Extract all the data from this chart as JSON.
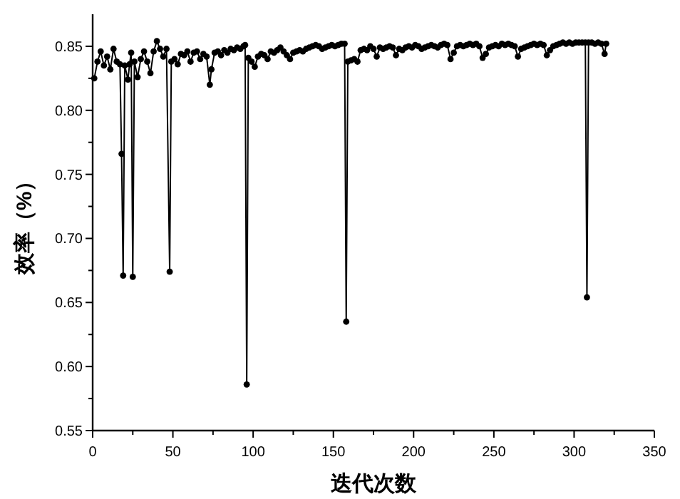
{
  "chart_data": {
    "type": "line",
    "xlabel": "迭代次数",
    "ylabel": "效率（%）",
    "marker": "circle",
    "line_style": "solid",
    "grid": false,
    "xlim": [
      0,
      350
    ],
    "ylim": [
      0.55,
      0.875
    ],
    "xticks": [
      0,
      {
        "value": 25,
        "label": null
      },
      50,
      {
        "value": 75,
        "label": null
      },
      100,
      {
        "value": 125,
        "label": null
      },
      150,
      {
        "value": 175,
        "label": null
      },
      200,
      {
        "value": 225,
        "label": null
      },
      250,
      {
        "value": 275,
        "label": null
      },
      300,
      {
        "value": 325,
        "label": null
      },
      350
    ],
    "yticks": [
      0.55,
      {
        "value": 0.575,
        "label": null
      },
      {
        "value": 0.6,
        "label": "0.60"
      },
      {
        "value": 0.625,
        "label": null
      },
      0.65,
      {
        "value": 0.675,
        "label": null
      },
      {
        "value": 0.7,
        "label": "0.70"
      },
      {
        "value": 0.725,
        "label": null
      },
      0.75,
      {
        "value": 0.775,
        "label": null
      },
      {
        "value": 0.8,
        "label": "0.80"
      },
      {
        "value": 0.825,
        "label": null
      },
      0.85
    ],
    "series": [
      {
        "color": "#000000",
        "x": [
          1,
          3,
          5,
          7,
          9,
          11,
          13,
          15,
          17,
          18,
          19,
          20,
          22,
          23,
          24,
          25,
          26,
          28,
          30,
          32,
          34,
          36,
          38,
          40,
          42,
          44,
          46,
          48,
          49,
          51,
          53,
          55,
          57,
          59,
          61,
          63,
          65,
          67,
          69,
          71,
          73,
          74,
          76,
          78,
          80,
          82,
          84,
          86,
          88,
          90,
          92,
          94,
          95,
          96,
          97,
          99,
          101,
          103,
          105,
          107,
          109,
          111,
          113,
          115,
          117,
          119,
          121,
          123,
          125,
          127,
          129,
          131,
          133,
          135,
          137,
          139,
          141,
          143,
          145,
          147,
          149,
          151,
          153,
          155,
          157,
          158,
          159,
          161,
          163,
          165,
          167,
          169,
          171,
          173,
          175,
          177,
          179,
          181,
          183,
          185,
          187,
          189,
          191,
          193,
          195,
          197,
          199,
          201,
          203,
          205,
          207,
          209,
          211,
          213,
          215,
          217,
          219,
          221,
          223,
          225,
          227,
          229,
          231,
          233,
          235,
          237,
          239,
          241,
          243,
          245,
          247,
          249,
          251,
          253,
          255,
          257,
          259,
          261,
          263,
          265,
          267,
          269,
          271,
          273,
          275,
          277,
          279,
          281,
          283,
          285,
          287,
          289,
          291,
          293,
          295,
          297,
          299,
          301,
          303,
          305,
          307,
          308,
          309,
          311,
          313,
          315,
          317,
          319,
          320
        ],
        "values": [
          0.825,
          0.838,
          0.846,
          0.835,
          0.842,
          0.832,
          0.848,
          0.838,
          0.836,
          0.766,
          0.671,
          0.835,
          0.824,
          0.836,
          0.845,
          0.67,
          0.838,
          0.826,
          0.84,
          0.846,
          0.838,
          0.829,
          0.846,
          0.854,
          0.848,
          0.842,
          0.848,
          0.674,
          0.838,
          0.84,
          0.836,
          0.844,
          0.843,
          0.846,
          0.838,
          0.845,
          0.846,
          0.84,
          0.844,
          0.842,
          0.82,
          0.832,
          0.845,
          0.846,
          0.843,
          0.847,
          0.845,
          0.848,
          0.847,
          0.849,
          0.848,
          0.85,
          0.851,
          0.586,
          0.841,
          0.838,
          0.834,
          0.842,
          0.844,
          0.843,
          0.84,
          0.846,
          0.845,
          0.847,
          0.849,
          0.846,
          0.843,
          0.84,
          0.845,
          0.846,
          0.847,
          0.846,
          0.848,
          0.849,
          0.85,
          0.851,
          0.85,
          0.848,
          0.849,
          0.85,
          0.851,
          0.85,
          0.851,
          0.852,
          0.852,
          0.635,
          0.838,
          0.839,
          0.84,
          0.838,
          0.847,
          0.848,
          0.847,
          0.85,
          0.848,
          0.842,
          0.849,
          0.848,
          0.849,
          0.85,
          0.849,
          0.843,
          0.848,
          0.847,
          0.849,
          0.85,
          0.849,
          0.851,
          0.85,
          0.848,
          0.849,
          0.85,
          0.851,
          0.85,
          0.849,
          0.851,
          0.852,
          0.851,
          0.84,
          0.845,
          0.85,
          0.851,
          0.85,
          0.851,
          0.852,
          0.851,
          0.852,
          0.85,
          0.841,
          0.844,
          0.849,
          0.85,
          0.851,
          0.85,
          0.852,
          0.851,
          0.852,
          0.851,
          0.85,
          0.842,
          0.848,
          0.849,
          0.85,
          0.851,
          0.852,
          0.851,
          0.852,
          0.851,
          0.843,
          0.847,
          0.85,
          0.851,
          0.852,
          0.853,
          0.852,
          0.853,
          0.852,
          0.853,
          0.853,
          0.853,
          0.853,
          0.654,
          0.853,
          0.853,
          0.852,
          0.853,
          0.852,
          0.844,
          0.852
        ]
      }
    ]
  }
}
